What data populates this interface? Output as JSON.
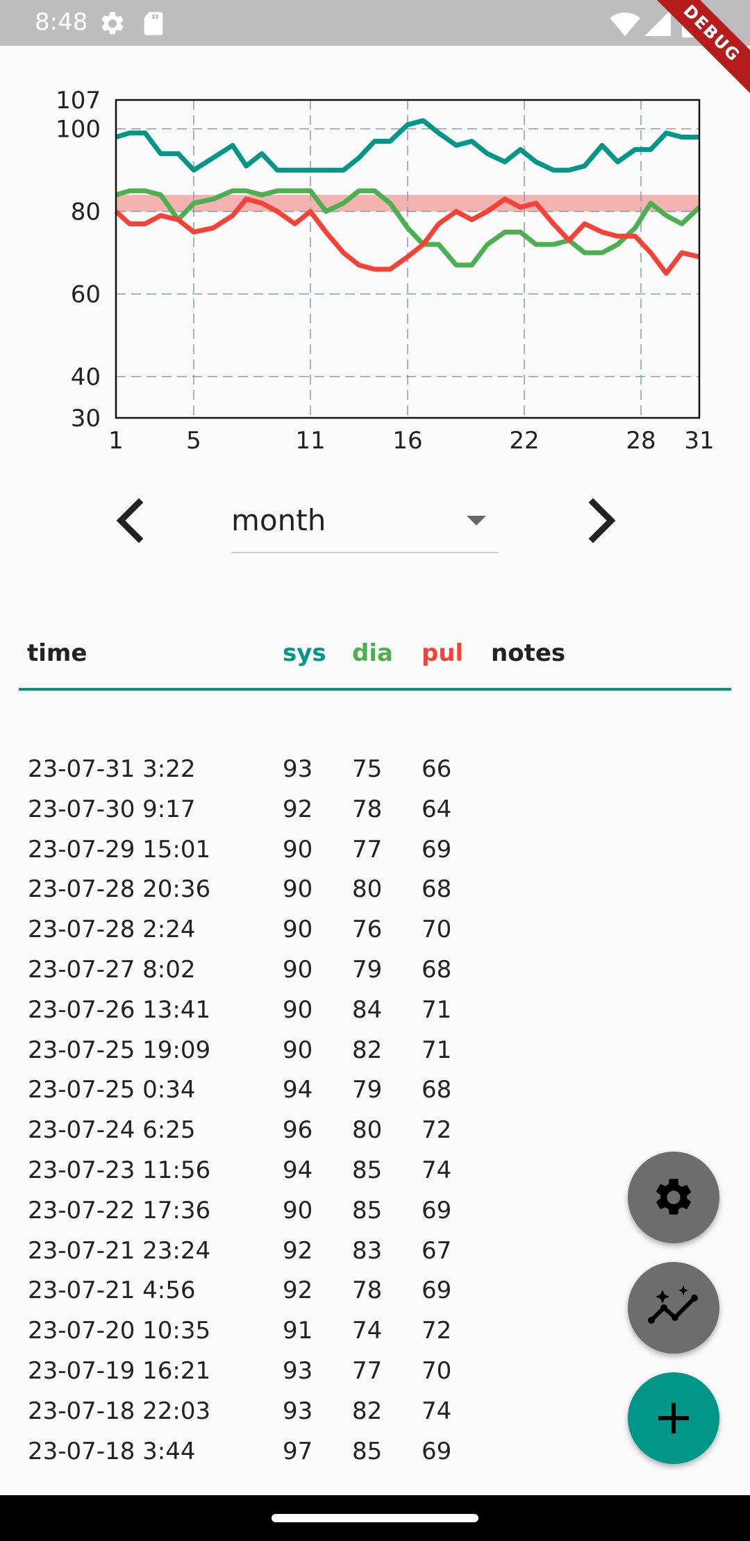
{
  "status_bar": {
    "time": "8:48",
    "icons": [
      "settings-gear-icon",
      "sd-card-icon",
      "wifi-icon",
      "cell-signal-icon",
      "battery-icon"
    ],
    "debug_banner": "DEBUG"
  },
  "chart_data": {
    "type": "line",
    "xlabel": "",
    "ylabel": "",
    "xlim": [
      1,
      31
    ],
    "ylim": [
      30,
      107
    ],
    "x_ticks": [
      "1",
      "5",
      "11",
      "16",
      "22",
      "28",
      "31"
    ],
    "y_ticks": [
      "30",
      "40",
      "60",
      "80",
      "100",
      "107"
    ],
    "grid": true,
    "x": [
      1,
      1.7,
      2.5,
      3.3,
      4.2,
      5,
      6,
      7,
      7.7,
      8.5,
      9.3,
      10.2,
      11,
      11.8,
      12.7,
      13.5,
      14.3,
      15.1,
      16,
      16.8,
      17.6,
      18.5,
      19.3,
      20.1,
      21,
      21.8,
      22.6,
      23.5,
      24.3,
      25.1,
      26,
      26.8,
      27.7,
      28.5,
      29.3,
      30.1,
      31
    ],
    "series": [
      {
        "name": "sys",
        "color": "#009688",
        "values": [
          98,
          99,
          99,
          94,
          94,
          90,
          93,
          96,
          91,
          94,
          90,
          90,
          90,
          90,
          90,
          93,
          97,
          97,
          101,
          102,
          99,
          96,
          97,
          94,
          92,
          95,
          92,
          90,
          90,
          91,
          96,
          92,
          95,
          95,
          99,
          98,
          98
        ]
      },
      {
        "name": "dia",
        "color": "#4caf50",
        "values": [
          84,
          85,
          85,
          84,
          78,
          82,
          83,
          85,
          85,
          84,
          85,
          85,
          85,
          80,
          82,
          85,
          85,
          82,
          76,
          72,
          72,
          67,
          67,
          72,
          75,
          75,
          72,
          72,
          73,
          70,
          70,
          72,
          76,
          82,
          79,
          77,
          81
        ]
      },
      {
        "name": "pul",
        "color": "#f44336",
        "values": [
          80,
          77,
          77,
          79,
          78,
          75,
          76,
          79,
          83,
          82,
          80,
          77,
          80,
          75,
          70,
          67,
          66,
          66,
          69,
          72,
          77,
          80,
          78,
          80,
          83,
          81,
          82,
          77,
          73,
          77,
          75,
          74,
          74,
          70,
          65,
          70,
          69
        ]
      }
    ],
    "band": {
      "from": 80,
      "to": 84,
      "color": "#f4b3b0"
    }
  },
  "chart_overrides": {
    "sys_tail": [
      98,
      94,
      94,
      94,
      98
    ],
    "dia_tail": [
      79,
      78,
      77,
      81,
      82,
      85,
      85
    ],
    "pul_tail": [
      65,
      70,
      69,
      74,
      75,
      77,
      72
    ]
  },
  "controls": {
    "range_value": "month",
    "prev_icon": "chevron-left-icon",
    "next_icon": "chevron-right-icon"
  },
  "table": {
    "headers": {
      "time": "time",
      "sys": "sys",
      "dia": "dia",
      "pul": "pul",
      "notes": "notes"
    },
    "header_colors": {
      "time": "#222222",
      "sys": "#009688",
      "dia": "#4caf50",
      "pul": "#f44336",
      "notes": "#222222"
    },
    "rows": [
      {
        "time": "23-07-31 3:22",
        "sys": "93",
        "dia": "75",
        "pul": "66",
        "notes": ""
      },
      {
        "time": "23-07-30 9:17",
        "sys": "92",
        "dia": "78",
        "pul": "64",
        "notes": ""
      },
      {
        "time": "23-07-29 15:01",
        "sys": "90",
        "dia": "77",
        "pul": "69",
        "notes": ""
      },
      {
        "time": "23-07-28 20:36",
        "sys": "90",
        "dia": "80",
        "pul": "68",
        "notes": ""
      },
      {
        "time": "23-07-28 2:24",
        "sys": "90",
        "dia": "76",
        "pul": "70",
        "notes": ""
      },
      {
        "time": "23-07-27 8:02",
        "sys": "90",
        "dia": "79",
        "pul": "68",
        "notes": ""
      },
      {
        "time": "23-07-26 13:41",
        "sys": "90",
        "dia": "84",
        "pul": "71",
        "notes": ""
      },
      {
        "time": "23-07-25 19:09",
        "sys": "90",
        "dia": "82",
        "pul": "71",
        "notes": ""
      },
      {
        "time": "23-07-25 0:34",
        "sys": "94",
        "dia": "79",
        "pul": "68",
        "notes": ""
      },
      {
        "time": "23-07-24 6:25",
        "sys": "96",
        "dia": "80",
        "pul": "72",
        "notes": ""
      },
      {
        "time": "23-07-23 11:56",
        "sys": "94",
        "dia": "85",
        "pul": "74",
        "notes": ""
      },
      {
        "time": "23-07-22 17:36",
        "sys": "90",
        "dia": "85",
        "pul": "69",
        "notes": ""
      },
      {
        "time": "23-07-21 23:24",
        "sys": "92",
        "dia": "83",
        "pul": "67",
        "notes": ""
      },
      {
        "time": "23-07-21 4:56",
        "sys": "92",
        "dia": "78",
        "pul": "69",
        "notes": ""
      },
      {
        "time": "23-07-20 10:35",
        "sys": "91",
        "dia": "74",
        "pul": "72",
        "notes": ""
      },
      {
        "time": "23-07-19 16:21",
        "sys": "93",
        "dia": "77",
        "pul": "70",
        "notes": ""
      },
      {
        "time": "23-07-18 22:03",
        "sys": "93",
        "dia": "82",
        "pul": "74",
        "notes": ""
      },
      {
        "time": "23-07-18 3:44",
        "sys": "97",
        "dia": "85",
        "pul": "69",
        "notes": ""
      }
    ]
  },
  "fabs": [
    {
      "name": "settings-fab",
      "icon": "gear-icon",
      "color": "#6d6d6d"
    },
    {
      "name": "statistics-fab",
      "icon": "auto-graph-icon",
      "color": "#6d6d6d"
    },
    {
      "name": "add-entry-fab",
      "icon": "plus-icon",
      "color": "#009688"
    }
  ]
}
